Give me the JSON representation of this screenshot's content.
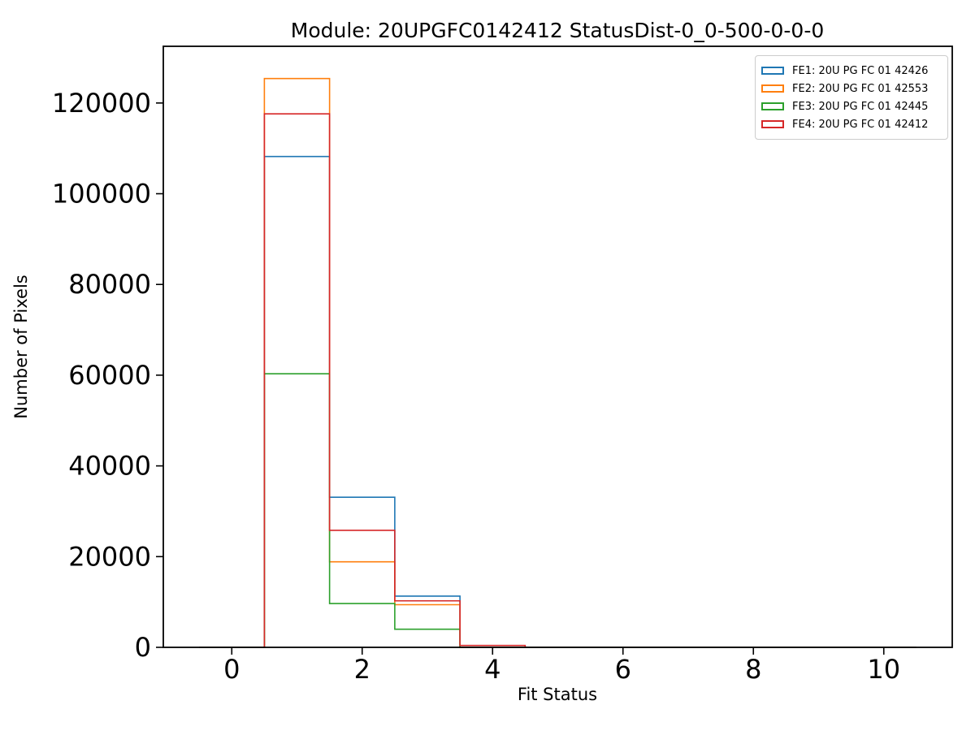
{
  "chart_data": {
    "type": "bar",
    "subtype": "step-histogram",
    "title": "Module: 20UPGFC0142412 StatusDist-0_0-500-0-0-0",
    "xlabel": "Fit Status",
    "ylabel": "Number of Pixels",
    "bin_edges": [
      -0.5,
      0.5,
      1.5,
      2.5,
      3.5,
      4.5,
      5.5,
      6.5,
      7.5,
      8.5,
      9.5,
      10.5
    ],
    "bin_centers": [
      0,
      1,
      2,
      3,
      4,
      5,
      6,
      7,
      8,
      9,
      10
    ],
    "x_ticks": [
      0,
      2,
      4,
      6,
      8,
      10
    ],
    "y_ticks": [
      0,
      20000,
      40000,
      60000,
      80000,
      100000,
      120000
    ],
    "xlim": [
      -1.05,
      11.05
    ],
    "ylim": [
      0,
      132500
    ],
    "grid": false,
    "legend_position": "upper right",
    "series": [
      {
        "name": "FE1: 20U PG FC 01 42426",
        "color": "#1f77b4",
        "values": [
          0,
          108200,
          33100,
          11300,
          0,
          0,
          0,
          0,
          0,
          0,
          0
        ]
      },
      {
        "name": "FE2: 20U PG FC 01 42553",
        "color": "#ff7f0e",
        "values": [
          0,
          125400,
          18850,
          9400,
          0,
          0,
          0,
          0,
          0,
          0,
          0
        ]
      },
      {
        "name": "FE3: 20U PG FC 01 42445",
        "color": "#2ca02c",
        "values": [
          0,
          60300,
          9650,
          4000,
          0,
          0,
          0,
          0,
          0,
          0,
          0
        ]
      },
      {
        "name": "FE4: 20U PG FC 01 42412",
        "color": "#d62728",
        "values": [
          0,
          117600,
          25800,
          10250,
          420,
          0,
          0,
          0,
          0,
          0,
          0
        ]
      }
    ],
    "axis_color": "#000000"
  }
}
